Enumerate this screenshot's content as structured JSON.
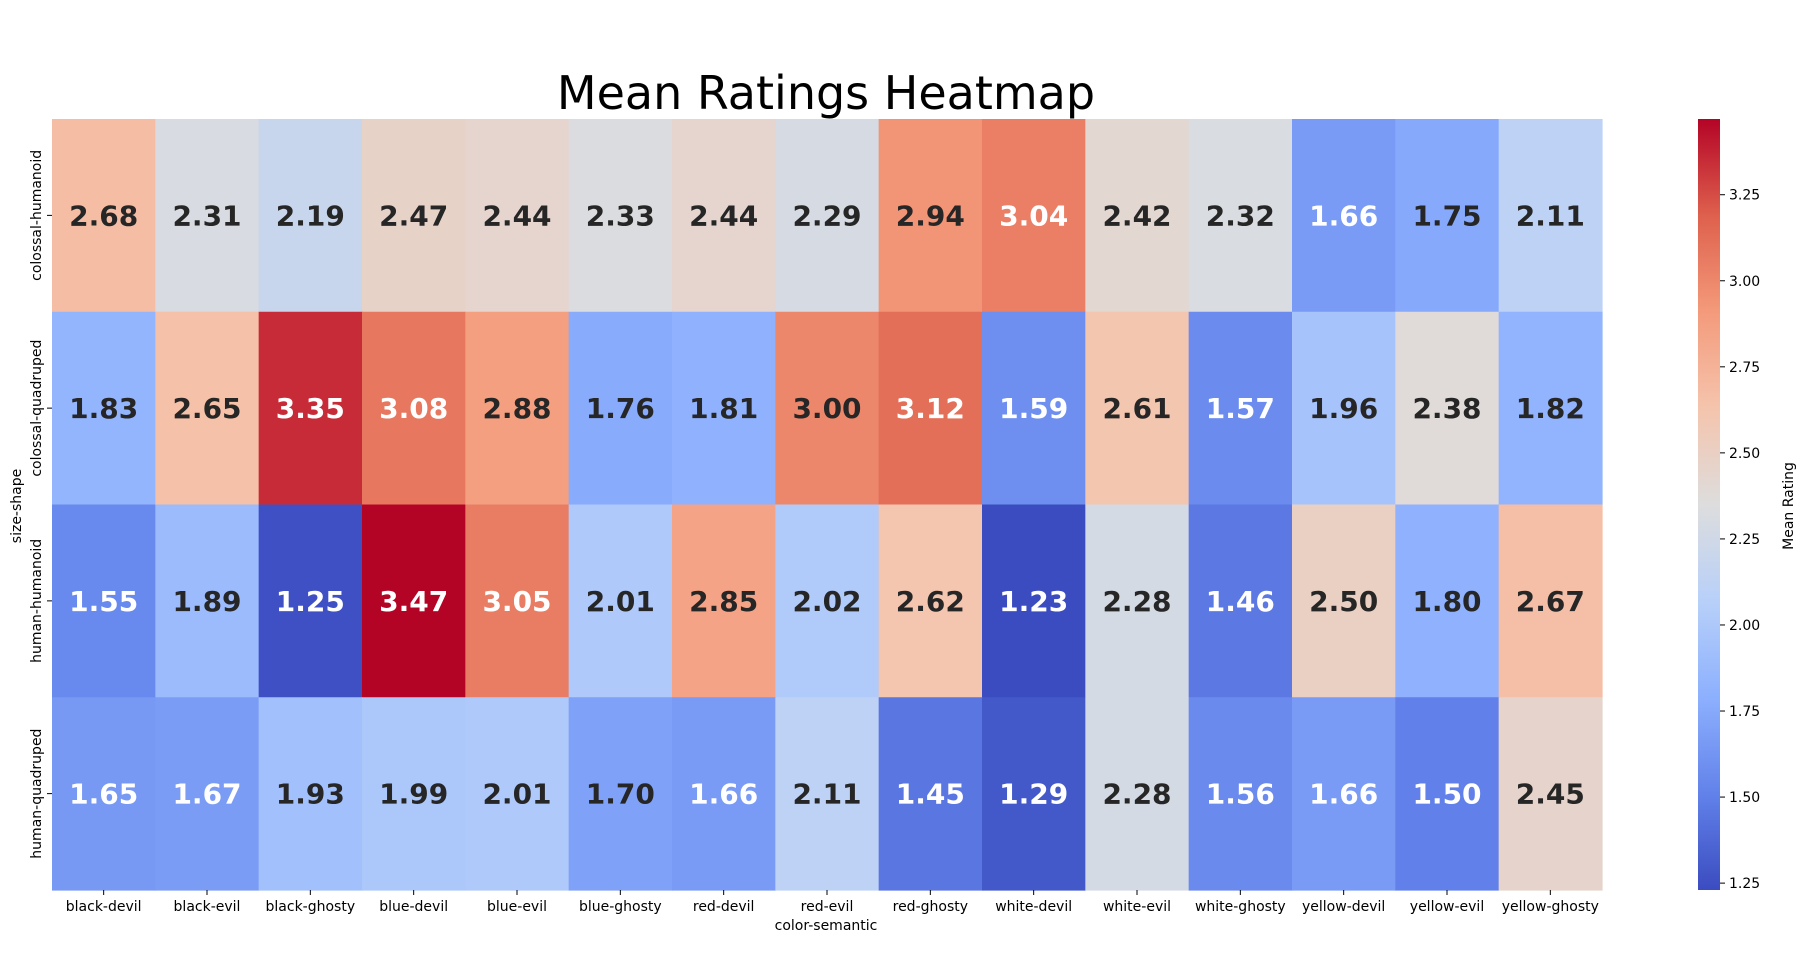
{
  "chart_data": {
    "type": "heatmap",
    "title": "Mean Ratings Heatmap",
    "xlabel": "color-semantic",
    "ylabel": "size-shape",
    "x_categories": [
      "black-devil",
      "black-evil",
      "black-ghosty",
      "blue-devil",
      "blue-evil",
      "blue-ghosty",
      "red-devil",
      "red-evil",
      "red-ghosty",
      "white-devil",
      "white-evil",
      "white-ghosty",
      "yellow-devil",
      "yellow-evil",
      "yellow-ghosty"
    ],
    "y_categories": [
      "colossal-humanoid",
      "colossal-quadruped",
      "human-humanoid",
      "human-quadruped"
    ],
    "values": [
      [
        2.68,
        2.31,
        2.19,
        2.47,
        2.44,
        2.33,
        2.44,
        2.29,
        2.94,
        3.04,
        2.42,
        2.32,
        1.66,
        1.75,
        2.11
      ],
      [
        1.83,
        2.65,
        3.35,
        3.08,
        2.88,
        1.76,
        1.81,
        3.0,
        3.12,
        1.59,
        2.61,
        1.57,
        1.96,
        2.38,
        1.82
      ],
      [
        1.55,
        1.89,
        1.25,
        3.47,
        3.05,
        2.01,
        2.85,
        2.02,
        2.62,
        1.23,
        2.28,
        1.46,
        2.5,
        1.8,
        2.67
      ],
      [
        1.65,
        1.67,
        1.93,
        1.99,
        2.01,
        1.7,
        1.66,
        2.11,
        1.45,
        1.29,
        2.28,
        1.56,
        1.66,
        1.5,
        2.45
      ]
    ],
    "colormap": "coolwarm",
    "vmin": 1.23,
    "vmax": 3.47,
    "colorbar": {
      "label": "Mean Rating",
      "ticks": [
        1.25,
        1.5,
        1.75,
        2.0,
        2.25,
        2.5,
        2.75,
        3.0,
        3.25
      ],
      "tick_labels": [
        "1.25",
        "1.50",
        "1.75",
        "2.00",
        "2.25",
        "2.50",
        "2.75",
        "3.00",
        "3.25"
      ]
    },
    "annotation_format": "2 decimals, bold",
    "grid": false
  }
}
